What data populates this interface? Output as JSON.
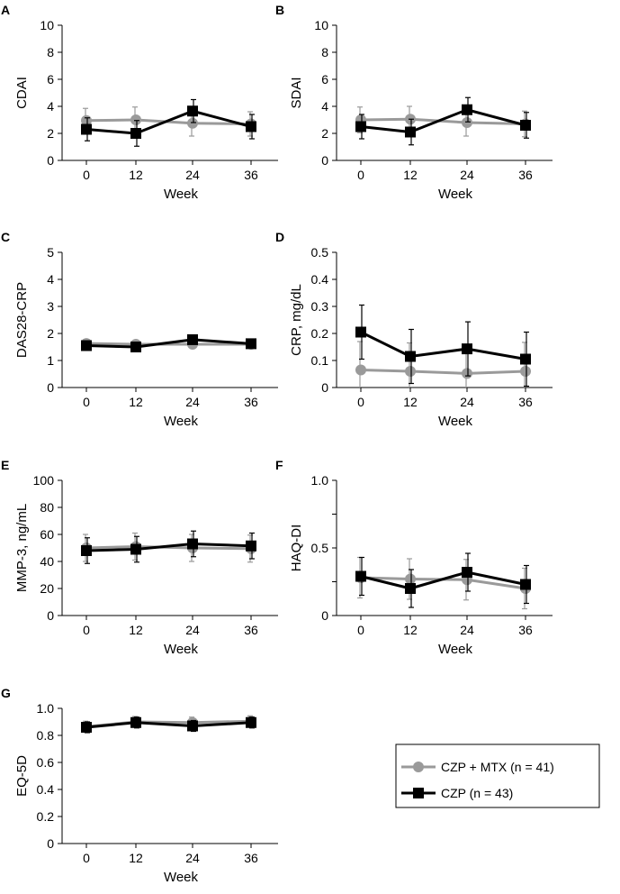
{
  "figure": {
    "legend": [
      {
        "label": "CZP + MTX (n = 41)",
        "color": "#9a9a9a",
        "marker": "circle"
      },
      {
        "label": "CZP (n = 43)",
        "color": "#000000",
        "marker": "square"
      }
    ]
  },
  "chart_data": [
    {
      "type": "line",
      "panel": "A",
      "ylabel": "CDAI",
      "xlabel": "Week",
      "x": [
        "0",
        "12",
        "24",
        "36"
      ],
      "ylim": [
        0,
        10
      ],
      "yticks": [
        "0",
        "2",
        "4",
        "6",
        "8",
        "10"
      ],
      "series": [
        {
          "name": "CZP + MTX (n = 41)",
          "values": [
            2.95,
            3.0,
            2.75,
            2.7
          ],
          "err": [
            0.9,
            0.95,
            0.95,
            0.9
          ]
        },
        {
          "name": "CZP (n = 43)",
          "values": [
            2.3,
            2.0,
            3.65,
            2.5
          ],
          "err": [
            0.85,
            0.95,
            0.85,
            0.9
          ]
        }
      ]
    },
    {
      "type": "line",
      "panel": "B",
      "ylabel": "SDAI",
      "xlabel": "Week",
      "x": [
        "0",
        "12",
        "24",
        "36"
      ],
      "ylim": [
        0,
        10
      ],
      "yticks": [
        "0",
        "2",
        "4",
        "6",
        "8",
        "10"
      ],
      "series": [
        {
          "name": "CZP + MTX (n = 41)",
          "values": [
            3.0,
            3.05,
            2.8,
            2.7
          ],
          "err": [
            0.95,
            0.95,
            1.0,
            0.95
          ]
        },
        {
          "name": "CZP (n = 43)",
          "values": [
            2.5,
            2.1,
            3.75,
            2.6
          ],
          "err": [
            0.9,
            0.95,
            0.9,
            0.95
          ]
        }
      ]
    },
    {
      "type": "line",
      "panel": "C",
      "ylabel": "DAS28-CRP",
      "xlabel": "Week",
      "x": [
        "0",
        "12",
        "24",
        "36"
      ],
      "ylim": [
        0,
        5
      ],
      "yticks": [
        "0",
        "1",
        "2",
        "3",
        "4",
        "5"
      ],
      "series": [
        {
          "name": "CZP + MTX (n = 41)",
          "values": [
            1.63,
            1.6,
            1.6,
            1.6
          ],
          "err": [
            0.12,
            0.12,
            0.12,
            0.12
          ]
        },
        {
          "name": "CZP (n = 43)",
          "values": [
            1.55,
            1.5,
            1.77,
            1.62
          ],
          "err": [
            0.12,
            0.12,
            0.12,
            0.12
          ]
        }
      ]
    },
    {
      "type": "line",
      "panel": "D",
      "ylabel": "CRP, mg/dL",
      "xlabel": "Week",
      "x": [
        "0",
        "12",
        "24",
        "36"
      ],
      "ylim": [
        0,
        0.5
      ],
      "yticks": [
        "0",
        "0.1",
        "0.2",
        "0.3",
        "0.4",
        "0.5"
      ],
      "series": [
        {
          "name": "CZP + MTX (n = 41)",
          "values": [
            0.065,
            0.06,
            0.052,
            0.06
          ],
          "err": [
            0.105,
            0.105,
            0.095,
            0.107
          ]
        },
        {
          "name": "CZP (n = 43)",
          "values": [
            0.205,
            0.115,
            0.143,
            0.105
          ],
          "err": [
            0.1,
            0.1,
            0.1,
            0.1
          ]
        }
      ]
    },
    {
      "type": "line",
      "panel": "E",
      "ylabel": "MMP-3, ng/mL",
      "xlabel": "Week",
      "x": [
        "0",
        "12",
        "24",
        "36"
      ],
      "ylim": [
        0,
        100
      ],
      "yticks": [
        "0",
        "20",
        "40",
        "60",
        "80",
        "100"
      ],
      "series": [
        {
          "name": "CZP + MTX (n = 41)",
          "values": [
            50,
            51,
            50,
            49.5
          ],
          "err": [
            10,
            10,
            10,
            10
          ]
        },
        {
          "name": "CZP (n = 43)",
          "values": [
            48,
            49,
            53,
            51.5
          ],
          "err": [
            9.5,
            9.5,
            9.5,
            9.5
          ]
        }
      ]
    },
    {
      "type": "line",
      "panel": "F",
      "ylabel": "HAQ-DI",
      "xlabel": "Week",
      "x": [
        "0",
        "12",
        "24",
        "36"
      ],
      "ylim": [
        0,
        1.0
      ],
      "yticks": [
        "0",
        "",
        "0.5",
        "",
        "1.0"
      ],
      "series": [
        {
          "name": "CZP + MTX (n = 41)",
          "values": [
            0.28,
            0.27,
            0.265,
            0.2
          ],
          "err": [
            0.15,
            0.15,
            0.15,
            0.15
          ]
        },
        {
          "name": "CZP (n = 43)",
          "values": [
            0.29,
            0.2,
            0.32,
            0.23
          ],
          "err": [
            0.14,
            0.14,
            0.14,
            0.14
          ]
        }
      ]
    },
    {
      "type": "line",
      "panel": "G",
      "ylabel": "EQ-5D",
      "xlabel": "Week",
      "x": [
        "0",
        "12",
        "24",
        "36"
      ],
      "ylim": [
        0,
        1.0
      ],
      "yticks": [
        "0",
        "0.2",
        "0.4",
        "0.6",
        "0.8",
        "1.0"
      ],
      "series": [
        {
          "name": "CZP + MTX (n = 41)",
          "values": [
            0.865,
            0.9,
            0.895,
            0.905
          ],
          "err": [
            0.04,
            0.04,
            0.04,
            0.04
          ]
        },
        {
          "name": "CZP (n = 43)",
          "values": [
            0.86,
            0.895,
            0.87,
            0.895
          ],
          "err": [
            0.04,
            0.04,
            0.04,
            0.04
          ]
        }
      ]
    }
  ]
}
